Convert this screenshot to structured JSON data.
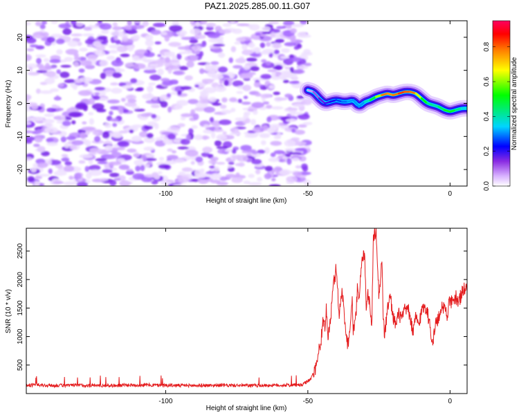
{
  "title": "PAZ1.2025.285.00.11.G07",
  "chart_data": [
    {
      "type": "heatmap",
      "name": "spectrogram",
      "xlabel": "Height of straight line (km)",
      "ylabel": "Frequency (Hz)",
      "xlim": [
        -149,
        6
      ],
      "ylim": [
        -25,
        25
      ],
      "xticks": [
        -100,
        -50,
        0
      ],
      "yticks": [
        -20,
        -10,
        0,
        10,
        20
      ],
      "noise_region_x": [
        -149,
        -50
      ],
      "signal_trace": {
        "x": [
          -50,
          -48,
          -46,
          -44,
          -42,
          -40,
          -38,
          -36,
          -34,
          -32,
          -30,
          -28,
          -26,
          -24,
          -22,
          -20,
          -18,
          -16,
          -14,
          -12,
          -10,
          -8,
          -6,
          -4,
          -2,
          0,
          2,
          4,
          6
        ],
        "y": [
          4,
          3.5,
          1.5,
          0,
          0.5,
          1,
          0.5,
          0.5,
          1,
          -1,
          0.5,
          1,
          2,
          2.5,
          3,
          2.5,
          3,
          3.5,
          3.5,
          3,
          1.5,
          0,
          -0.5,
          -1,
          -2,
          -2.5,
          -2,
          -1.5,
          -1.5
        ],
        "amplitude": [
          0.05,
          0.1,
          0.15,
          0.2,
          0.2,
          0.25,
          0.3,
          0.3,
          0.35,
          0.3,
          0.35,
          0.45,
          0.55,
          0.75,
          0.9,
          0.7,
          0.95,
          0.8,
          0.9,
          0.75,
          0.6,
          0.5,
          0.4,
          0.45,
          0.5,
          0.55,
          0.5,
          0.4,
          0.35
        ]
      },
      "colorbar": {
        "label": "Normalized spectral amplitude",
        "ticks": [
          0.0,
          0.2,
          0.4,
          0.6,
          0.8
        ],
        "range": [
          0,
          0.95
        ],
        "stops": [
          "#ffffff",
          "#d9b3ff",
          "#8a2be2",
          "#0000ff",
          "#00d5ff",
          "#00ff00",
          "#ffff00",
          "#ff8000",
          "#ff0000",
          "#ff0060"
        ]
      }
    },
    {
      "type": "line",
      "name": "snr",
      "xlabel": "Height of straight line (km)",
      "ylabel": "SNR (10 * v/v)",
      "xlim": [
        -149,
        6
      ],
      "ylim": [
        0,
        2900
      ],
      "xticks": [
        -100,
        -50,
        0
      ],
      "yticks": [
        500,
        1000,
        1500,
        2000,
        2500
      ],
      "color": "#e41a1c",
      "x": [
        -149,
        -140,
        -130,
        -120,
        -110,
        -100,
        -90,
        -80,
        -70,
        -60,
        -52,
        -49,
        -47,
        -45.5,
        -44.5,
        -44,
        -43.5,
        -43,
        -42,
        -41,
        -40,
        -39,
        -38,
        -37,
        -36,
        -35,
        -34.5,
        -34,
        -33,
        -32.5,
        -32,
        -31,
        -30,
        -29.5,
        -29,
        -28,
        -27.5,
        -27,
        -26,
        -25.5,
        -25,
        -24,
        -23.5,
        -23,
        -22,
        -21,
        -20,
        -19,
        -18,
        -17,
        -16,
        -15,
        -14,
        -13,
        -12,
        -11,
        -10,
        -9,
        -8,
        -7,
        -6,
        -5,
        -4,
        -3,
        -2,
        -1,
        0,
        1,
        2,
        3,
        4,
        5,
        6
      ],
      "y": [
        150,
        140,
        145,
        140,
        150,
        145,
        140,
        145,
        140,
        145,
        150,
        250,
        500,
        900,
        1300,
        1100,
        1500,
        1000,
        1300,
        1900,
        2200,
        1400,
        1800,
        1300,
        850,
        1200,
        1700,
        1100,
        1400,
        1950,
        1700,
        2300,
        2500,
        1500,
        1800,
        1500,
        1200,
        2700,
        2900,
        2300,
        1700,
        2350,
        1400,
        1000,
        1500,
        1700,
        1350,
        1200,
        1400,
        1300,
        1450,
        1500,
        1350,
        1050,
        1350,
        1200,
        1450,
        1550,
        1450,
        1150,
        900,
        1250,
        1300,
        1550,
        1500,
        1400,
        1650,
        1550,
        1700,
        1600,
        1750,
        1850,
        1800
      ]
    }
  ]
}
